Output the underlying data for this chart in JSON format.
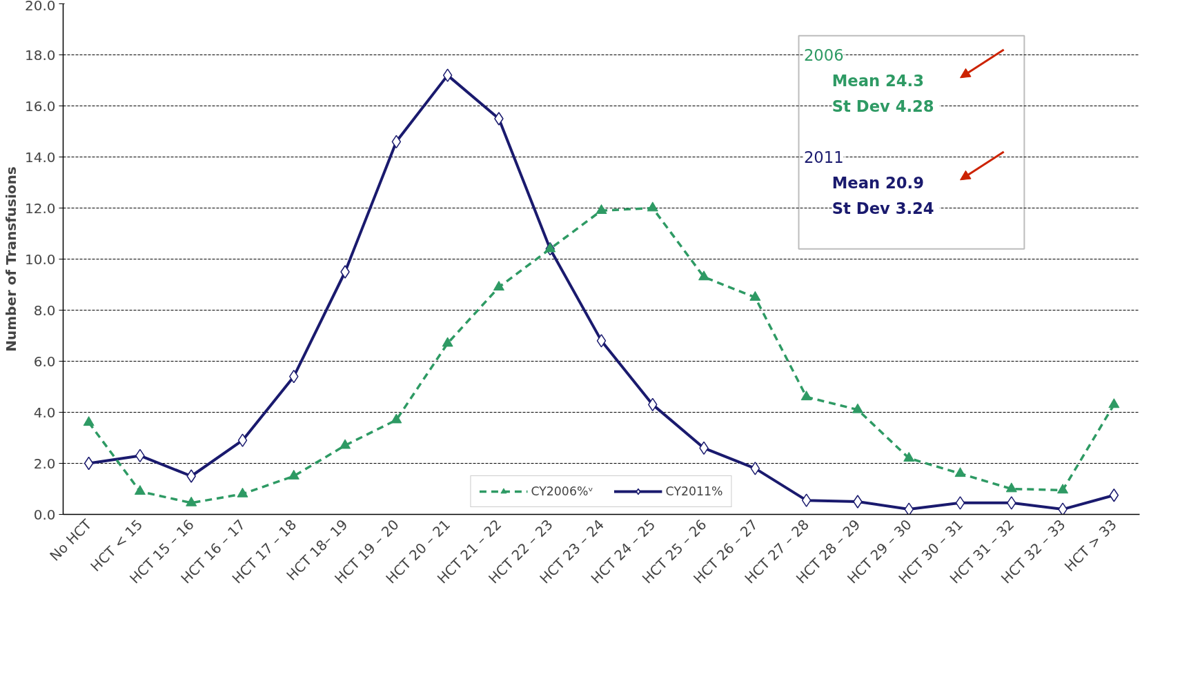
{
  "chart_data": {
    "type": "line",
    "ylabel": "Number of Transfusions",
    "categories": [
      "No HCT",
      "HCT < 15",
      "HCT 15 – 16",
      "HCT 16 – 17",
      "HCT 17 – 18",
      "HCT 18– 19",
      "HCT 19 – 20",
      "HCT 20 – 21",
      "HCT 21 – 22",
      "HCT 22 – 23",
      "HCT 23 – 24",
      "HCT 24 – 25",
      "HCT 25 – 26",
      "HCT 26 – 27",
      "HCT 27 – 28",
      "HCT 28 – 29",
      "HCT 29 – 30",
      "HCT 30 – 31",
      "HCT 31 – 32",
      "HCT 32 – 33",
      "HCT > 33"
    ],
    "series": [
      {
        "name": "CY2006%ᵛ",
        "color": "#2e9a64",
        "marker": "triangle",
        "line_style": "dashed",
        "values": [
          3.6,
          0.9,
          0.45,
          0.8,
          1.5,
          2.7,
          3.7,
          6.7,
          8.9,
          10.4,
          11.9,
          12.0,
          9.3,
          8.5,
          4.6,
          4.1,
          2.2,
          1.6,
          1.0,
          0.95,
          4.3
        ]
      },
      {
        "name": "CY2011%",
        "color": "#1a1a6e",
        "marker": "diamond",
        "line_style": "solid",
        "values": [
          2.0,
          2.3,
          1.5,
          2.9,
          5.4,
          9.5,
          14.6,
          17.2,
          15.5,
          10.4,
          6.8,
          4.3,
          2.6,
          1.8,
          0.55,
          0.5,
          0.2,
          0.45,
          0.45,
          0.2,
          0.75
        ]
      }
    ],
    "ylim": [
      0,
      20
    ],
    "yticks": [
      {
        "value": 0,
        "label": "0.0"
      },
      {
        "value": 2,
        "label": "2.0"
      },
      {
        "value": 4,
        "label": "4.0"
      },
      {
        "value": 6,
        "label": "6.0"
      },
      {
        "value": 8,
        "label": "8.0"
      },
      {
        "value": 10,
        "label": "10.0"
      },
      {
        "value": 12,
        "label": "12.0"
      },
      {
        "value": 14,
        "label": "14.0"
      },
      {
        "value": 16,
        "label": "16.0"
      },
      {
        "value": 18,
        "label": "18.0"
      },
      {
        "value": 20,
        "label": "20.0"
      }
    ],
    "grid": "y",
    "legend": "bottom",
    "annotations": [
      "2006",
      "Mean  24.3",
      "St Dev  4.28",
      "2011",
      "Mean  20.9",
      "St Dev  3.24"
    ]
  }
}
